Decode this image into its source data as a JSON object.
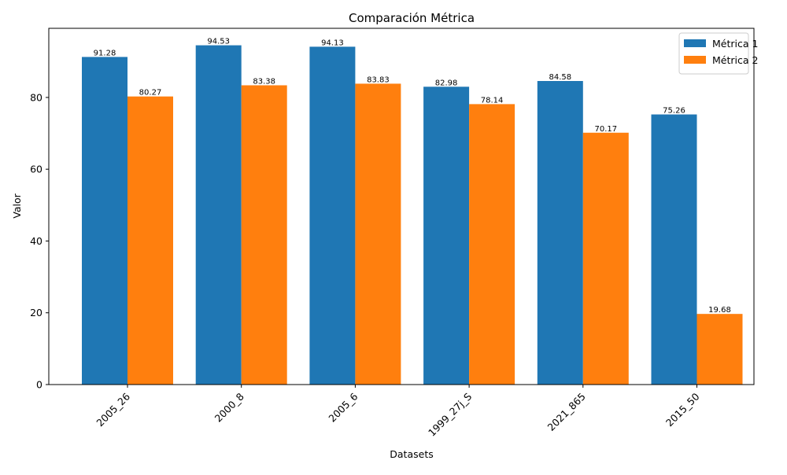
{
  "chart_data": {
    "type": "bar",
    "title": "Comparación Métrica",
    "xlabel": "Datasets",
    "ylabel": "Valor",
    "categories": [
      "2005_26",
      "2000_8",
      "2005_6",
      "1999_27j_S",
      "2021_865",
      "2015_50"
    ],
    "series": [
      {
        "name": "Métrica 1",
        "color": "#1f77b4",
        "values": [
          91.28,
          94.53,
          94.13,
          82.98,
          84.58,
          75.26
        ]
      },
      {
        "name": "Métrica 2",
        "color": "#ff7f0e",
        "values": [
          80.27,
          83.38,
          83.83,
          78.14,
          70.17,
          19.68
        ]
      }
    ],
    "ylim": [
      0,
      99.26
    ],
    "yticks": [
      0,
      20,
      40,
      60,
      80
    ],
    "grid": false,
    "legend_position": "top-right",
    "data_labels": true,
    "xtick_rotation": 45
  }
}
